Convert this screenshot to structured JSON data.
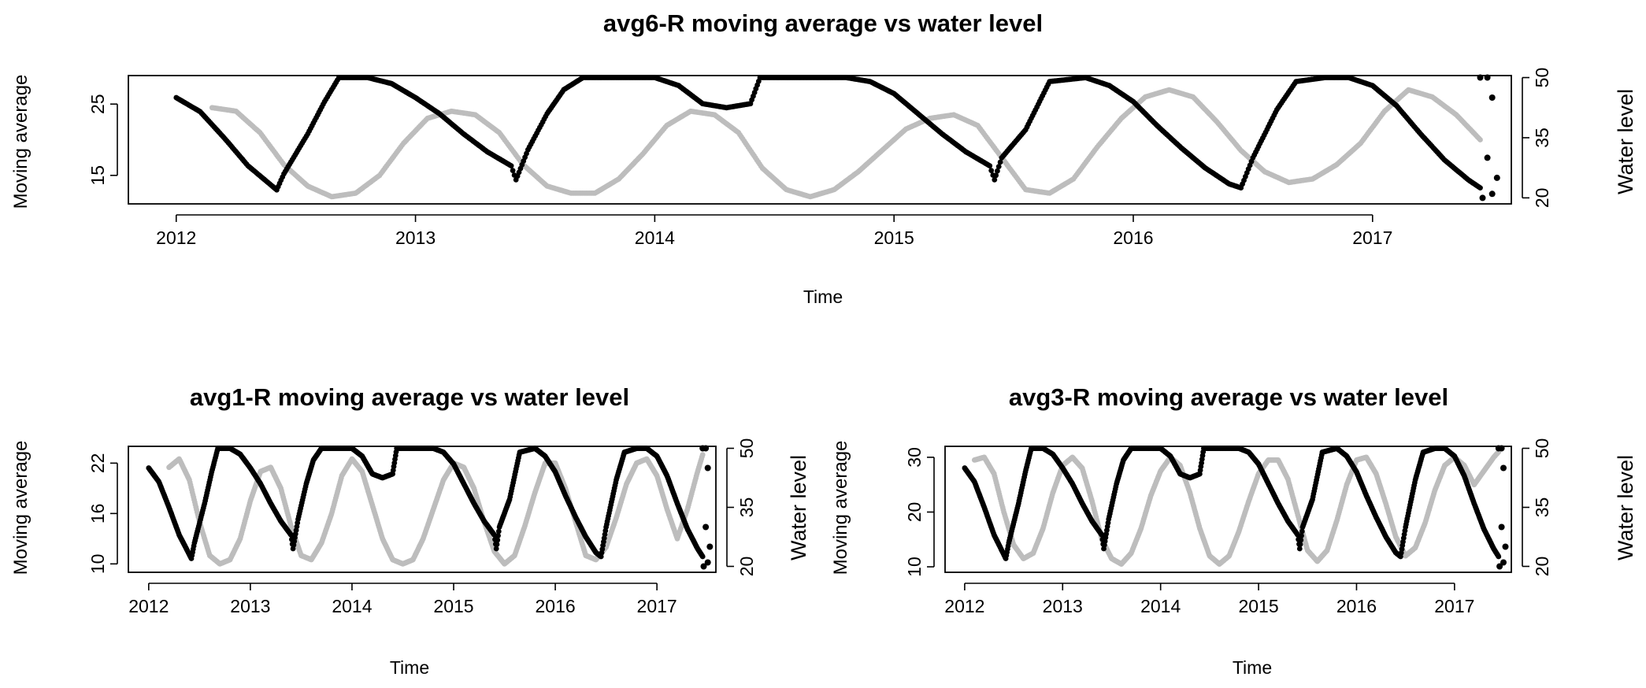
{
  "chart_data": [
    {
      "type": "scatter",
      "title": "avg6-R moving average vs water level",
      "xlabel": "Time",
      "ylabel_left": "Moving average",
      "ylabel_right": "Water level",
      "xlim": [
        2011.8,
        2017.58
      ],
      "ylim_left": [
        11,
        29
      ],
      "ylim_right": [
        18.5,
        50.5
      ],
      "x_ticks": [
        2012,
        2013,
        2014,
        2015,
        2016,
        2017
      ],
      "y_left_ticks": [
        15,
        25
      ],
      "y_right_ticks": [
        20,
        35,
        50
      ],
      "colors": {
        "moving_average": "#bdbdbd",
        "water_level": "#000000"
      },
      "series": [
        {
          "name": "Moving average",
          "axis": "left",
          "color": "#bdbdbd",
          "x": [
            2012.15,
            2012.25,
            2012.35,
            2012.45,
            2012.55,
            2012.65,
            2012.75,
            2012.85,
            2012.95,
            2013.05,
            2013.15,
            2013.25,
            2013.35,
            2013.45,
            2013.55,
            2013.65,
            2013.75,
            2013.85,
            2013.95,
            2014.05,
            2014.15,
            2014.25,
            2014.35,
            2014.45,
            2014.55,
            2014.65,
            2014.75,
            2014.85,
            2014.95,
            2015.05,
            2015.15,
            2015.25,
            2015.35,
            2015.45,
            2015.55,
            2015.65,
            2015.75,
            2015.85,
            2015.95,
            2016.05,
            2016.15,
            2016.25,
            2016.35,
            2016.45,
            2016.55,
            2016.65,
            2016.75,
            2016.85,
            2016.95,
            2017.05,
            2017.15,
            2017.25,
            2017.35,
            2017.45
          ],
          "values": [
            24.5,
            24.0,
            21.0,
            16.5,
            13.5,
            12.0,
            12.5,
            15.0,
            19.5,
            23.0,
            24.0,
            23.5,
            21.0,
            16.5,
            13.5,
            12.5,
            12.5,
            14.5,
            18.0,
            22.0,
            24.0,
            23.5,
            21.0,
            16.0,
            13.0,
            12.0,
            13.0,
            15.5,
            18.5,
            21.5,
            23.0,
            23.5,
            22.0,
            17.5,
            13.0,
            12.5,
            14.5,
            19.0,
            23.0,
            26.0,
            27.0,
            26.0,
            22.5,
            18.5,
            15.5,
            14.0,
            14.5,
            16.5,
            19.5,
            24.0,
            27.0,
            26.0,
            23.5,
            20.0
          ]
        },
        {
          "name": "Water level",
          "axis": "right",
          "color": "#000000",
          "x": [
            2012.0,
            2012.1,
            2012.2,
            2012.3,
            2012.38,
            2012.42,
            2012.45,
            2012.55,
            2012.62,
            2012.68,
            2012.8,
            2012.9,
            2013.0,
            2013.1,
            2013.2,
            2013.3,
            2013.4,
            2013.42,
            2013.47,
            2013.55,
            2013.62,
            2013.7,
            2013.85,
            2014.0,
            2014.1,
            2014.2,
            2014.3,
            2014.4,
            2014.44,
            2014.5,
            2014.6,
            2014.8,
            2014.9,
            2015.0,
            2015.1,
            2015.2,
            2015.3,
            2015.4,
            2015.42,
            2015.45,
            2015.55,
            2015.65,
            2015.8,
            2015.9,
            2016.0,
            2016.1,
            2016.2,
            2016.3,
            2016.4,
            2016.45,
            2016.5,
            2016.6,
            2016.68,
            2016.8,
            2016.9,
            2017.0,
            2017.1,
            2017.2,
            2017.3,
            2017.4,
            2017.45
          ],
          "values": [
            45.0,
            41.5,
            35.0,
            28.0,
            24.0,
            22.0,
            26.0,
            36.0,
            44.0,
            50.0,
            50.0,
            48.5,
            45.0,
            41.0,
            36.0,
            31.5,
            28.0,
            24.5,
            32.0,
            41.0,
            47.0,
            50.0,
            50.0,
            50.0,
            48.0,
            43.5,
            42.5,
            43.5,
            50.0,
            50.0,
            50.0,
            50.0,
            49.0,
            46.0,
            41.0,
            36.0,
            31.5,
            28.0,
            24.5,
            30.0,
            37.0,
            49.0,
            50.0,
            48.0,
            44.0,
            38.0,
            32.5,
            27.5,
            23.5,
            22.5,
            30.0,
            42.0,
            49.0,
            50.0,
            50.0,
            48.0,
            43.0,
            36.0,
            29.5,
            24.5,
            22.5
          ]
        }
      ],
      "endpoint_scatter": {
        "x": [
          2017.45,
          2017.48,
          2017.5,
          2017.48,
          2017.52,
          2017.5,
          2017.46
        ],
        "values": [
          50.0,
          50.0,
          45.0,
          30.0,
          25.0,
          21.0,
          20.0
        ]
      }
    },
    {
      "type": "scatter",
      "title": "avg1-R moving average vs water level",
      "xlabel": "Time",
      "ylabel_left": "Moving average",
      "ylabel_right": "Water level",
      "xlim": [
        2011.8,
        2017.58
      ],
      "ylim_left": [
        9,
        24
      ],
      "ylim_right": [
        18.5,
        50.5
      ],
      "x_ticks": [
        2012,
        2013,
        2014,
        2015,
        2016,
        2017
      ],
      "y_left_ticks": [
        10,
        16,
        22
      ],
      "y_right_ticks": [
        20,
        35,
        50
      ],
      "colors": {
        "moving_average": "#bdbdbd",
        "water_level": "#000000"
      },
      "series": [
        {
          "name": "Moving average",
          "axis": "left",
          "color": "#bdbdbd",
          "x": [
            2012.2,
            2012.3,
            2012.4,
            2012.5,
            2012.6,
            2012.7,
            2012.8,
            2012.9,
            2013.0,
            2013.1,
            2013.2,
            2013.3,
            2013.4,
            2013.5,
            2013.6,
            2013.7,
            2013.8,
            2013.9,
            2014.0,
            2014.1,
            2014.2,
            2014.3,
            2014.4,
            2014.5,
            2014.6,
            2014.7,
            2014.8,
            2014.9,
            2015.0,
            2015.1,
            2015.2,
            2015.3,
            2015.4,
            2015.5,
            2015.6,
            2015.7,
            2015.8,
            2015.9,
            2016.0,
            2016.1,
            2016.2,
            2016.3,
            2016.4,
            2016.5,
            2016.6,
            2016.7,
            2016.8,
            2016.9,
            2017.0,
            2017.1,
            2017.2,
            2017.3,
            2017.4,
            2017.45
          ],
          "values": [
            21.5,
            22.5,
            20.0,
            15.0,
            11.0,
            10.0,
            10.5,
            13.0,
            17.5,
            21.0,
            21.5,
            19.0,
            14.5,
            11.0,
            10.5,
            12.5,
            16.0,
            20.5,
            22.5,
            21.0,
            17.0,
            13.0,
            10.5,
            10.0,
            10.5,
            13.0,
            16.5,
            20.0,
            22.0,
            21.5,
            19.0,
            15.0,
            11.5,
            10.0,
            11.0,
            14.5,
            18.5,
            22.0,
            22.0,
            19.0,
            15.0,
            11.0,
            10.5,
            12.0,
            15.5,
            19.5,
            22.0,
            22.5,
            20.5,
            16.5,
            13.0,
            16.5,
            21.0,
            23.0
          ]
        },
        {
          "name": "Water level",
          "axis": "right",
          "color": "#000000",
          "x": [
            2012.0,
            2012.1,
            2012.2,
            2012.3,
            2012.38,
            2012.42,
            2012.45,
            2012.55,
            2012.62,
            2012.68,
            2012.8,
            2012.9,
            2013.0,
            2013.1,
            2013.2,
            2013.3,
            2013.4,
            2013.42,
            2013.47,
            2013.55,
            2013.62,
            2013.7,
            2013.85,
            2014.0,
            2014.1,
            2014.2,
            2014.3,
            2014.4,
            2014.44,
            2014.5,
            2014.6,
            2014.8,
            2014.9,
            2015.0,
            2015.1,
            2015.2,
            2015.3,
            2015.4,
            2015.42,
            2015.45,
            2015.55,
            2015.65,
            2015.8,
            2015.9,
            2016.0,
            2016.1,
            2016.2,
            2016.3,
            2016.4,
            2016.45,
            2016.5,
            2016.6,
            2016.68,
            2016.8,
            2016.9,
            2017.0,
            2017.1,
            2017.2,
            2017.3,
            2017.4,
            2017.45
          ],
          "values": [
            45.0,
            41.5,
            35.0,
            28.0,
            24.0,
            22.0,
            26.0,
            36.0,
            44.0,
            50.0,
            50.0,
            48.5,
            45.0,
            41.0,
            36.0,
            31.5,
            28.0,
            24.5,
            32.0,
            41.0,
            47.0,
            50.0,
            50.0,
            50.0,
            48.0,
            43.5,
            42.5,
            43.5,
            50.0,
            50.0,
            50.0,
            50.0,
            49.0,
            46.0,
            41.0,
            36.0,
            31.5,
            28.0,
            24.5,
            30.0,
            37.0,
            49.0,
            50.0,
            48.0,
            44.0,
            38.0,
            32.5,
            27.5,
            23.5,
            22.5,
            30.0,
            42.0,
            49.0,
            50.0,
            50.0,
            48.0,
            43.0,
            36.0,
            29.5,
            24.5,
            22.5
          ]
        }
      ],
      "endpoint_scatter": {
        "x": [
          2017.45,
          2017.48,
          2017.5,
          2017.48,
          2017.52,
          2017.5,
          2017.46
        ],
        "values": [
          50.0,
          50.0,
          45.0,
          30.0,
          25.0,
          21.0,
          20.0
        ]
      }
    },
    {
      "type": "scatter",
      "title": "avg3-R moving average vs water level",
      "xlabel": "Time",
      "ylabel_left": "Moving average",
      "ylabel_right": "Water level",
      "xlim": [
        2011.8,
        2017.58
      ],
      "ylim_left": [
        9,
        32
      ],
      "ylim_right": [
        18.5,
        50.5
      ],
      "x_ticks": [
        2012,
        2013,
        2014,
        2015,
        2016,
        2017
      ],
      "y_left_ticks": [
        10,
        20,
        30
      ],
      "y_right_ticks": [
        20,
        35,
        50
      ],
      "colors": {
        "moving_average": "#bdbdbd",
        "water_level": "#000000"
      },
      "series": [
        {
          "name": "Moving average",
          "axis": "left",
          "color": "#bdbdbd",
          "x": [
            2012.1,
            2012.2,
            2012.3,
            2012.4,
            2012.5,
            2012.6,
            2012.7,
            2012.8,
            2012.9,
            2013.0,
            2013.1,
            2013.2,
            2013.3,
            2013.4,
            2013.5,
            2013.6,
            2013.7,
            2013.8,
            2013.9,
            2014.0,
            2014.1,
            2014.2,
            2014.3,
            2014.4,
            2014.5,
            2014.6,
            2014.7,
            2014.8,
            2014.9,
            2015.0,
            2015.1,
            2015.2,
            2015.3,
            2015.4,
            2015.5,
            2015.6,
            2015.7,
            2015.8,
            2015.9,
            2016.0,
            2016.1,
            2016.2,
            2016.3,
            2016.4,
            2016.5,
            2016.6,
            2016.7,
            2016.8,
            2016.9,
            2017.0,
            2017.1,
            2017.2,
            2017.3,
            2017.4,
            2017.45
          ],
          "values": [
            29.5,
            30.0,
            27.0,
            20.0,
            14.0,
            11.5,
            12.5,
            17.0,
            23.5,
            28.5,
            30.0,
            28.0,
            22.0,
            15.0,
            11.5,
            10.5,
            12.5,
            17.0,
            23.0,
            27.5,
            30.0,
            28.5,
            23.5,
            17.0,
            12.0,
            10.5,
            12.0,
            16.5,
            22.0,
            27.0,
            29.5,
            29.5,
            26.0,
            19.5,
            13.0,
            11.0,
            13.0,
            18.5,
            25.0,
            29.5,
            30.0,
            27.0,
            21.5,
            15.5,
            12.0,
            13.5,
            18.0,
            24.0,
            28.5,
            30.0,
            28.5,
            25.0,
            27.5,
            30.0,
            31.0
          ]
        },
        {
          "name": "Water level",
          "axis": "right",
          "color": "#000000",
          "x": [
            2012.0,
            2012.1,
            2012.2,
            2012.3,
            2012.38,
            2012.42,
            2012.45,
            2012.55,
            2012.62,
            2012.68,
            2012.8,
            2012.9,
            2013.0,
            2013.1,
            2013.2,
            2013.3,
            2013.4,
            2013.42,
            2013.47,
            2013.55,
            2013.62,
            2013.7,
            2013.85,
            2014.0,
            2014.1,
            2014.2,
            2014.3,
            2014.4,
            2014.44,
            2014.5,
            2014.6,
            2014.8,
            2014.9,
            2015.0,
            2015.1,
            2015.2,
            2015.3,
            2015.4,
            2015.42,
            2015.45,
            2015.55,
            2015.65,
            2015.8,
            2015.9,
            2016.0,
            2016.1,
            2016.2,
            2016.3,
            2016.4,
            2016.45,
            2016.5,
            2016.6,
            2016.68,
            2016.8,
            2016.9,
            2017.0,
            2017.1,
            2017.2,
            2017.3,
            2017.4,
            2017.45
          ],
          "values": [
            45.0,
            41.5,
            35.0,
            28.0,
            24.0,
            22.0,
            26.0,
            36.0,
            44.0,
            50.0,
            50.0,
            48.5,
            45.0,
            41.0,
            36.0,
            31.5,
            28.0,
            24.5,
            32.0,
            41.0,
            47.0,
            50.0,
            50.0,
            50.0,
            48.0,
            43.5,
            42.5,
            43.5,
            50.0,
            50.0,
            50.0,
            50.0,
            49.0,
            46.0,
            41.0,
            36.0,
            31.5,
            28.0,
            24.5,
            30.0,
            37.0,
            49.0,
            50.0,
            48.0,
            44.0,
            38.0,
            32.5,
            27.5,
            23.5,
            22.5,
            30.0,
            42.0,
            49.0,
            50.0,
            50.0,
            48.0,
            43.0,
            36.0,
            29.5,
            24.5,
            22.5
          ]
        }
      ],
      "endpoint_scatter": {
        "x": [
          2017.45,
          2017.48,
          2017.5,
          2017.48,
          2017.52,
          2017.5,
          2017.46
        ],
        "values": [
          50.0,
          50.0,
          45.0,
          30.0,
          25.0,
          21.0,
          20.0
        ]
      }
    }
  ]
}
